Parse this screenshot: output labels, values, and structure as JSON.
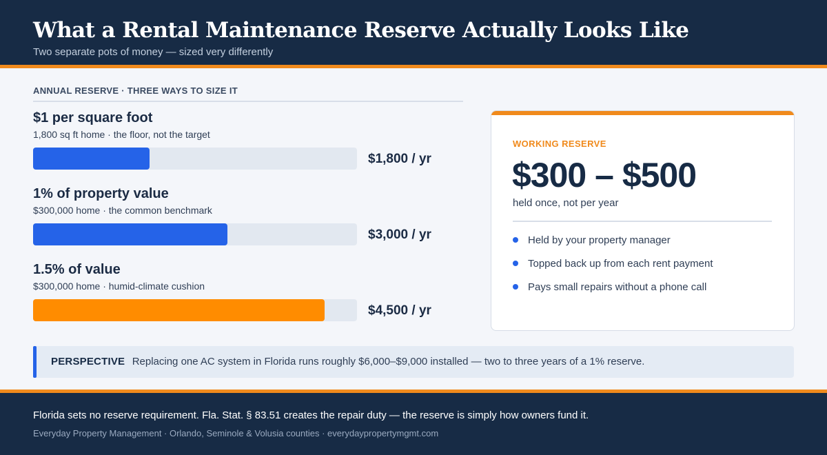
{
  "header": {
    "title": "What a Rental Maintenance Reserve Actually Looks Like",
    "subtitle": "Two separate pots of money — sized very differently"
  },
  "section_label": "ANNUAL RESERVE  ·  THREE WAYS TO SIZE IT",
  "chart_data": {
    "type": "bar",
    "orientation": "horizontal",
    "title": "ANNUAL RESERVE  ·  THREE WAYS TO SIZE IT",
    "categories": [
      "$1 per square foot",
      "1% of property value",
      "1.5% of value"
    ],
    "values": [
      1800,
      3000,
      4500
    ],
    "xlim": [
      0,
      5000
    ],
    "grid": false,
    "items": [
      {
        "label": "$1 per square foot",
        "sub": "1,800 sq ft home  ·  the floor, not the target",
        "value": 1800,
        "value_label": "$1,800 / yr",
        "color": "#2563e8"
      },
      {
        "label": "1% of property value",
        "sub": "$300,000 home  ·  the common benchmark",
        "value": 3000,
        "value_label": "$3,000 / yr",
        "color": "#2563e8"
      },
      {
        "label": "1.5% of value",
        "sub": "$300,000 home  ·  humid-climate cushion",
        "value": 4500,
        "value_label": "$4,500 / yr",
        "color": "#ff8c00"
      }
    ]
  },
  "card": {
    "label": "WORKING RESERVE",
    "range": "$300 – $500",
    "note": "held once, not per year",
    "bullets": [
      "Held by your property manager",
      "Topped back up from each rent payment",
      "Pays small repairs without a phone call"
    ]
  },
  "perspective": {
    "label": "PERSPECTIVE",
    "text": "Replacing one AC system in Florida runs roughly $6,000–$9,000 installed — two to three years of a 1% reserve."
  },
  "footer": {
    "main": "Florida sets no reserve requirement. Fla. Stat. § 83.51 creates the repair duty — the reserve is simply how owners fund it.",
    "sub": "Everyday Property Management  ·  Orlando, Seminole & Volusia counties  ·  everydaypropertymgmt.com"
  },
  "colors": {
    "navy": "#172b45",
    "accent_orange": "#f08a1c",
    "bar_blue": "#2563e8",
    "bar_orange": "#ff8c00",
    "track": "#e2e8f0"
  }
}
